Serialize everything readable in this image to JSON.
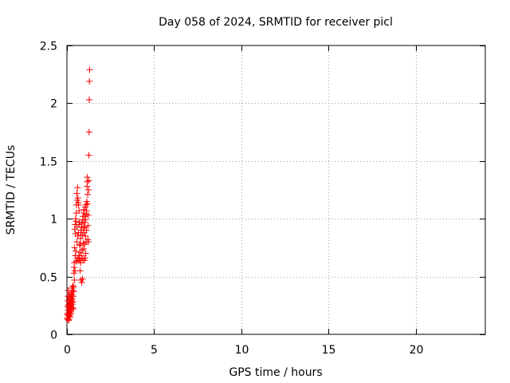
{
  "chart_data": {
    "type": "scatter",
    "title": "Day 058 of 2024, SRMTID for receiver picl",
    "xlabel": "GPS time / hours",
    "ylabel": "SRMTID / TECUs",
    "xlim": [
      0,
      24
    ],
    "ylim": [
      0,
      2.5
    ],
    "xticks": [
      0,
      5,
      10,
      15,
      20
    ],
    "xtick_labels": [
      "0",
      "5",
      "10",
      "15",
      "20"
    ],
    "yticks": [
      0,
      0.5,
      1,
      1.5,
      2,
      2.5
    ],
    "ytick_labels": [
      "0",
      "0.5",
      "1",
      "1.5",
      "2",
      "2.5"
    ],
    "grid": true,
    "marker": "+",
    "series": [
      {
        "name": "SRMTID",
        "color": "#ff0000",
        "points": [
          [
            0.02,
            0.14
          ],
          [
            0.03,
            0.18
          ],
          [
            0.04,
            0.24
          ],
          [
            0.05,
            0.29
          ],
          [
            0.06,
            0.33
          ],
          [
            0.07,
            0.38
          ],
          [
            0.08,
            0.16
          ],
          [
            0.09,
            0.21
          ],
          [
            0.1,
            0.12
          ],
          [
            0.11,
            0.26
          ],
          [
            0.12,
            0.31
          ],
          [
            0.13,
            0.19
          ],
          [
            0.14,
            0.23
          ],
          [
            0.15,
            0.28
          ],
          [
            0.16,
            0.35
          ],
          [
            0.17,
            0.17
          ],
          [
            0.18,
            0.22
          ],
          [
            0.19,
            0.2
          ],
          [
            0.2,
            0.27
          ],
          [
            0.21,
            0.32
          ],
          [
            0.22,
            0.25
          ],
          [
            0.23,
            0.18
          ],
          [
            0.24,
            0.3
          ],
          [
            0.25,
            0.36
          ],
          [
            0.26,
            0.22
          ],
          [
            0.27,
            0.29
          ],
          [
            0.28,
            0.34
          ],
          [
            0.29,
            0.4
          ],
          [
            0.3,
            0.26
          ],
          [
            0.31,
            0.31
          ],
          [
            0.32,
            0.23
          ],
          [
            0.33,
            0.38
          ],
          [
            0.34,
            0.42
          ],
          [
            0.35,
            0.28
          ],
          [
            0.36,
            0.33
          ],
          [
            0.37,
            0.22
          ],
          [
            0.38,
            0.41
          ],
          [
            0.39,
            0.37
          ],
          [
            0.4,
            0.53
          ],
          [
            0.41,
            0.58
          ],
          [
            0.42,
            0.62
          ],
          [
            0.43,
            0.47
          ],
          [
            0.44,
            0.75
          ],
          [
            0.45,
            0.91
          ],
          [
            0.46,
            0.55
          ],
          [
            0.47,
            0.95
          ],
          [
            0.48,
            0.68
          ],
          [
            0.49,
            0.87
          ],
          [
            0.5,
            1.0
          ],
          [
            0.51,
            0.72
          ],
          [
            0.52,
            0.98
          ],
          [
            0.53,
            0.63
          ],
          [
            0.54,
            1.05
          ],
          [
            0.55,
            1.12
          ],
          [
            0.56,
            0.8
          ],
          [
            0.57,
            1.22
          ],
          [
            0.58,
            0.93
          ],
          [
            0.59,
            1.16
          ],
          [
            0.6,
            0.66
          ],
          [
            0.61,
            1.27
          ],
          [
            0.62,
            0.85
          ],
          [
            0.63,
            1.18
          ],
          [
            0.64,
            0.64
          ],
          [
            0.65,
            1.14
          ],
          [
            0.66,
            0.88
          ],
          [
            0.67,
            1.12
          ],
          [
            0.68,
            0.68
          ],
          [
            0.69,
            0.95
          ],
          [
            0.7,
            1.07
          ],
          [
            0.71,
            0.66
          ],
          [
            0.72,
            0.97
          ],
          [
            0.73,
            0.77
          ],
          [
            0.74,
            0.64
          ],
          [
            0.75,
            0.71
          ],
          [
            0.76,
            0.55
          ],
          [
            0.77,
            0.78
          ],
          [
            0.78,
            0.83
          ],
          [
            0.79,
            0.62
          ],
          [
            0.8,
            0.88
          ],
          [
            0.81,
            0.47
          ],
          [
            0.82,
            0.9
          ],
          [
            0.83,
            0.68
          ],
          [
            0.84,
            0.93
          ],
          [
            0.85,
            0.45
          ],
          [
            0.86,
            0.96
          ],
          [
            0.87,
            0.73
          ],
          [
            0.88,
            0.86
          ],
          [
            0.89,
            0.48
          ],
          [
            0.9,
            0.99
          ],
          [
            0.91,
            0.65
          ],
          [
            0.92,
            1.02
          ],
          [
            0.93,
            0.79
          ],
          [
            0.94,
            0.92
          ],
          [
            0.95,
            1.05
          ],
          [
            0.96,
            0.74
          ],
          [
            0.97,
            1.08
          ],
          [
            0.98,
            0.88
          ],
          [
            0.99,
            0.97
          ],
          [
            1.0,
            0.64
          ],
          [
            1.01,
            1.02
          ],
          [
            1.02,
            0.78
          ],
          [
            1.03,
            0.93
          ],
          [
            1.04,
            0.66
          ],
          [
            1.05,
            1.1
          ],
          [
            1.06,
            0.85
          ],
          [
            1.07,
            0.99
          ],
          [
            1.08,
            0.7
          ],
          [
            1.09,
            1.12
          ],
          [
            1.1,
            0.8
          ],
          [
            1.11,
            1.04
          ],
          [
            1.12,
            0.9
          ],
          [
            1.13,
            1.07
          ],
          [
            1.14,
            1.15
          ],
          [
            1.15,
            1.28
          ],
          [
            1.16,
            1.36
          ],
          [
            1.17,
            1.32
          ],
          [
            1.18,
            1.13
          ],
          [
            1.19,
            1.21
          ],
          [
            1.2,
            0.82
          ],
          [
            1.21,
            0.94
          ],
          [
            1.22,
            1.03
          ],
          [
            1.23,
            0.8
          ],
          [
            1.24,
            1.25
          ],
          [
            1.25,
            1.33
          ],
          [
            1.26,
            1.55
          ],
          [
            1.27,
            1.75
          ],
          [
            1.28,
            2.03
          ],
          [
            1.29,
            2.19
          ],
          [
            1.3,
            2.29
          ],
          [
            0.03,
            0.13
          ],
          [
            0.05,
            0.17
          ],
          [
            0.07,
            0.21
          ],
          [
            0.09,
            0.25
          ],
          [
            0.11,
            0.13
          ],
          [
            0.13,
            0.16
          ],
          [
            0.15,
            0.19
          ],
          [
            0.17,
            0.24
          ],
          [
            0.19,
            0.15
          ],
          [
            0.21,
            0.2
          ],
          [
            0.23,
            0.24
          ],
          [
            0.25,
            0.27
          ]
        ]
      }
    ]
  }
}
